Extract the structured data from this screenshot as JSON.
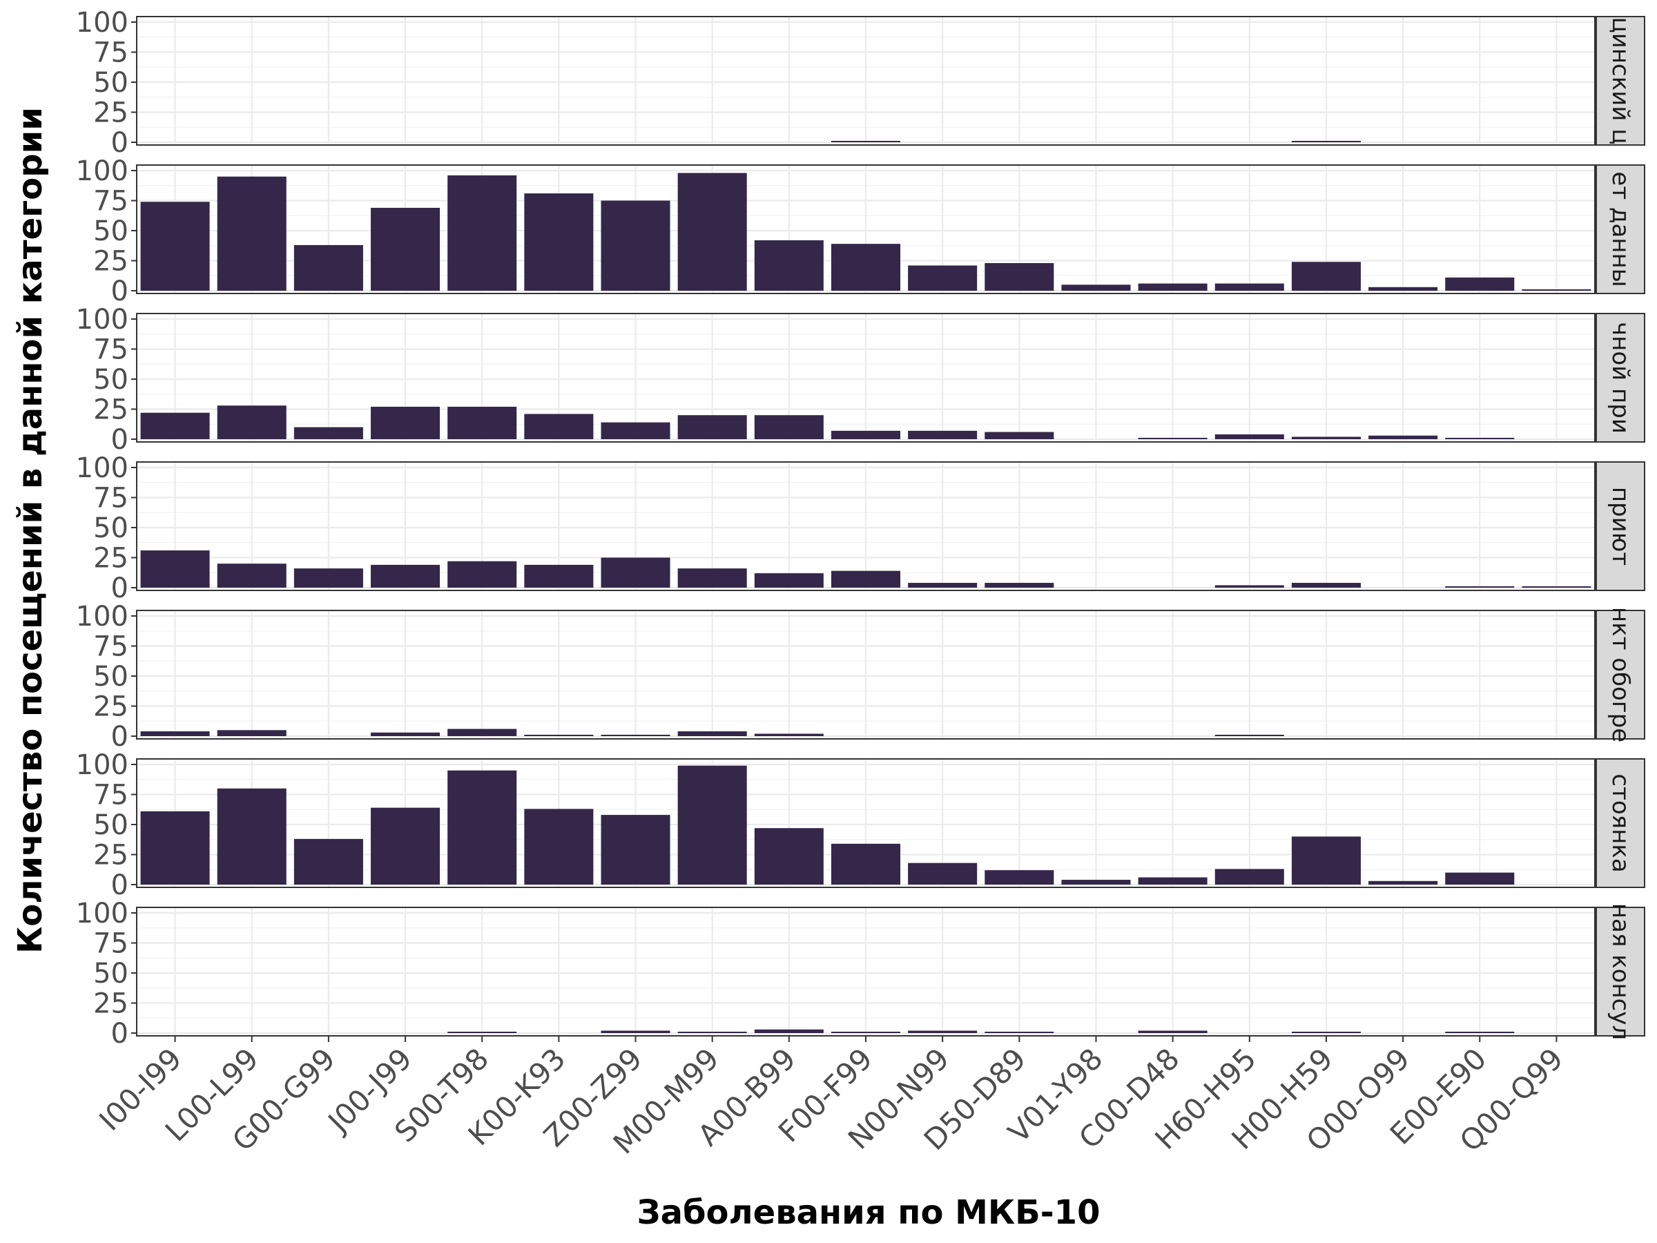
{
  "chart_data": {
    "type": "bar",
    "xlabel": "Заболевания по МКБ-10",
    "ylabel": "Количество посещений в данной категории",
    "ylim": [
      0,
      100
    ],
    "yticks": [
      0,
      25,
      50,
      75,
      100
    ],
    "grid": true,
    "facet_layout": "vertical",
    "categories": [
      "I00-I99",
      "L00-L99",
      "G00-G99",
      "J00-J99",
      "S00-T98",
      "K00-K93",
      "Z00-Z99",
      "M00-M99",
      "A00-B99",
      "F00-F99",
      "N00-N99",
      "D50-D89",
      "V01-Y98",
      "C00-D48",
      "H60-H95",
      "H00-H59",
      "O00-O99",
      "E00-E90",
      "Q00-Q99"
    ],
    "series": [
      {
        "name": "цинский ц",
        "values": [
          0,
          0,
          0,
          0,
          0,
          0,
          0,
          0,
          0,
          1,
          0,
          0,
          0,
          0,
          0,
          1,
          0,
          0,
          0
        ]
      },
      {
        "name": "ет данны",
        "values": [
          74,
          95,
          38,
          69,
          96,
          81,
          75,
          98,
          42,
          39,
          21,
          23,
          5,
          6,
          6,
          24,
          3,
          11,
          1
        ]
      },
      {
        "name": "чной при",
        "values": [
          22,
          28,
          10,
          27,
          27,
          21,
          14,
          20,
          20,
          7,
          7,
          6,
          0,
          1,
          4,
          2,
          3,
          1,
          0
        ]
      },
      {
        "name": "приют",
        "values": [
          31,
          20,
          16,
          19,
          22,
          19,
          25,
          16,
          12,
          14,
          4,
          4,
          0,
          0,
          2,
          4,
          0,
          1,
          1
        ]
      },
      {
        "name": "нкт обогре",
        "values": [
          4,
          5,
          0,
          3,
          6,
          1,
          1,
          4,
          2,
          0,
          0,
          0,
          0,
          0,
          1,
          0,
          0,
          0,
          0
        ]
      },
      {
        "name": "стоянка",
        "values": [
          61,
          80,
          38,
          64,
          95,
          63,
          58,
          99,
          47,
          34,
          18,
          12,
          4,
          6,
          13,
          40,
          3,
          10,
          0
        ]
      },
      {
        "name": "ная консул",
        "values": [
          0,
          0,
          0,
          0,
          1,
          0,
          2,
          1,
          3,
          1,
          2,
          1,
          0,
          2,
          0,
          1,
          0,
          1,
          0
        ]
      }
    ]
  }
}
